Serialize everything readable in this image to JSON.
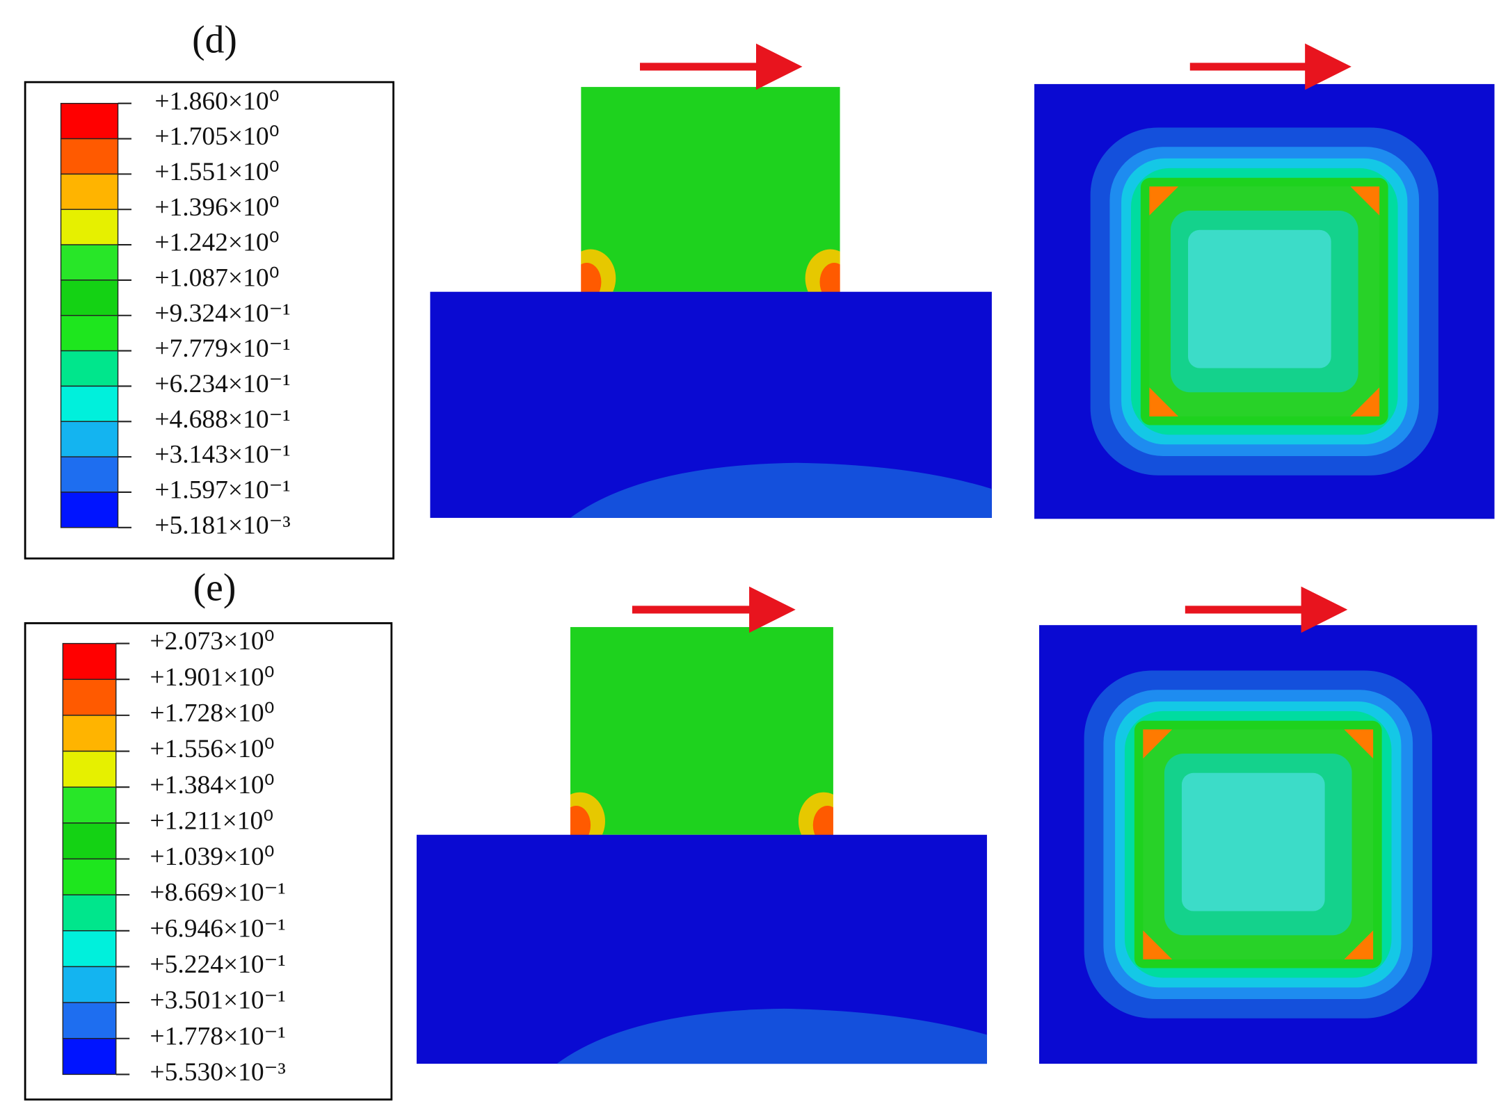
{
  "panels": [
    {
      "label": "(d)",
      "legend": [
        "+1.860×10⁰",
        "+1.705×10⁰",
        "+1.551×10⁰",
        "+1.396×10⁰",
        "+1.242×10⁰",
        "+1.087×10⁰",
        "+9.324×10⁻¹",
        "+7.779×10⁻¹",
        "+6.234×10⁻¹",
        "+4.688×10⁻¹",
        "+3.143×10⁻¹",
        "+1.597×10⁻¹",
        "+5.181×10⁻³"
      ]
    },
    {
      "label": "(e)",
      "legend": [
        "+2.073×10⁰",
        "+1.901×10⁰",
        "+1.728×10⁰",
        "+1.556×10⁰",
        "+1.384×10⁰",
        "+1.211×10⁰",
        "+1.039×10⁰",
        "+8.669×10⁻¹",
        "+6.946×10⁻¹",
        "+5.224×10⁻¹",
        "+3.501×10⁻¹",
        "+1.778×10⁻¹",
        "+5.530×10⁻³"
      ]
    }
  ]
}
